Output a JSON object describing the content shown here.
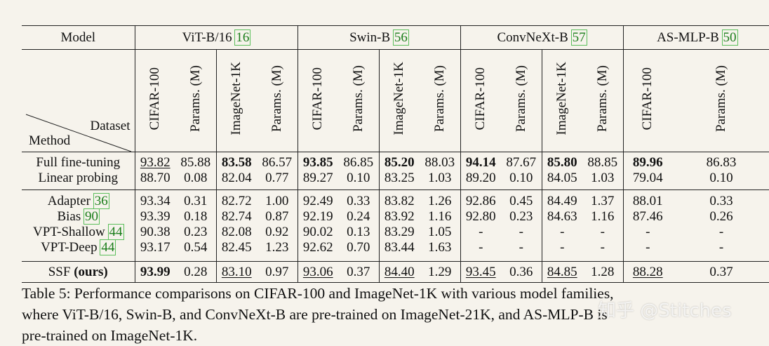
{
  "header": {
    "model_label": "Model",
    "families": [
      {
        "name": "ViT-B/16",
        "ref": "16"
      },
      {
        "name": "Swin-B",
        "ref": "56"
      },
      {
        "name": "ConvNeXt-B",
        "ref": "57"
      },
      {
        "name": "AS-MLP-B",
        "ref": "50"
      }
    ],
    "dataset_label": "Dataset",
    "method_label": "Method",
    "cols": [
      "CIFAR-100",
      "Params. (M)",
      "ImageNet-1K",
      "Params. (M)"
    ]
  },
  "rows": [
    {
      "method": "Full fine-tuning",
      "ref": "",
      "cells": [
        "93.82",
        "85.88",
        "83.58",
        "86.57",
        "93.85",
        "86.85",
        "85.20",
        "88.03",
        "94.14",
        "87.67",
        "85.80",
        "88.85",
        "89.96",
        "86.83"
      ]
    },
    {
      "method": "Linear probing",
      "ref": "",
      "cells": [
        "88.70",
        "0.08",
        "82.04",
        "0.77",
        "89.27",
        "0.10",
        "83.25",
        "1.03",
        "89.20",
        "0.10",
        "84.05",
        "1.03",
        "79.04",
        "0.10"
      ]
    },
    {
      "method": "Adapter",
      "ref": "36",
      "cells": [
        "93.34",
        "0.31",
        "82.72",
        "1.00",
        "92.49",
        "0.33",
        "83.82",
        "1.26",
        "92.86",
        "0.45",
        "84.49",
        "1.37",
        "88.01",
        "0.33"
      ]
    },
    {
      "method": "Bias",
      "ref": "90",
      "cells": [
        "93.39",
        "0.18",
        "82.74",
        "0.87",
        "92.19",
        "0.24",
        "83.92",
        "1.16",
        "92.80",
        "0.23",
        "84.63",
        "1.16",
        "87.46",
        "0.26"
      ]
    },
    {
      "method": "VPT-Shallow",
      "ref": "44",
      "cells": [
        "90.38",
        "0.23",
        "82.08",
        "0.92",
        "90.02",
        "0.13",
        "83.29",
        "1.05",
        "-",
        "-",
        "-",
        "-",
        "-",
        "-"
      ]
    },
    {
      "method": "VPT-Deep",
      "ref": "44",
      "cells": [
        "93.17",
        "0.54",
        "82.45",
        "1.23",
        "92.62",
        "0.70",
        "83.44",
        "1.63",
        "-",
        "-",
        "-",
        "-",
        "-",
        "-"
      ]
    },
    {
      "method": "SSF",
      "method_suffix": "(ours)",
      "ref": "",
      "cells": [
        "93.99",
        "0.28",
        "83.10",
        "0.97",
        "93.06",
        "0.37",
        "84.40",
        "1.29",
        "93.45",
        "0.36",
        "84.85",
        "1.28",
        "88.28",
        "0.37"
      ]
    }
  ],
  "caption": {
    "line1": "Table 5: Performance comparisons on CIFAR-100 and ImageNet-1K with various model families,",
    "line2": "where ViT-B/16, Swin-B, and ConvNeXt-B are pre-trained on ImageNet-21K, and AS-MLP-B is",
    "line3": "pre-trained on ImageNet-1K."
  },
  "watermark": "知乎 @Stitches"
}
